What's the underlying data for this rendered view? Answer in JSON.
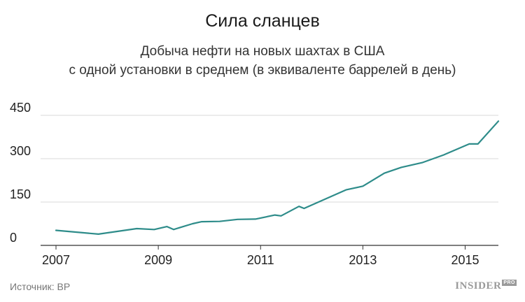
{
  "chart_data": {
    "type": "line",
    "title": "Сила сланцев",
    "subtitle_line1": "Добыча нефти на новых шахтах в США",
    "subtitle_line2": "с одной установки в среднем (в эквиваленте баррелей в день)",
    "xlabel": "",
    "ylabel": "",
    "xlim": [
      2007,
      2015.65
    ],
    "ylim": [
      0,
      450
    ],
    "yticks": [
      0,
      150,
      300,
      450
    ],
    "xticks": [
      2007,
      2009,
      2011,
      2013,
      2015
    ],
    "grid": true,
    "line_color": "#2e8c8a",
    "series": [
      {
        "x": [
          2007.0,
          2007.83,
          2008.58,
          2008.92,
          2009.17,
          2009.3,
          2009.67,
          2009.85,
          2010.2,
          2010.55,
          2010.9,
          2011.28,
          2011.4,
          2011.75,
          2011.85,
          2012.67,
          2013.0,
          2013.42,
          2013.75,
          2014.17,
          2014.58,
          2015.08,
          2015.25,
          2015.65
        ],
        "values": [
          52,
          39,
          58,
          55,
          65,
          55,
          75,
          82,
          83,
          90,
          91,
          105,
          102,
          135,
          128,
          192,
          205,
          250,
          270,
          287,
          313,
          351,
          351,
          430
        ]
      }
    ]
  },
  "footer": {
    "source": "Источник: BP",
    "logo": "INSIDER",
    "logo_badge": "PRO"
  }
}
